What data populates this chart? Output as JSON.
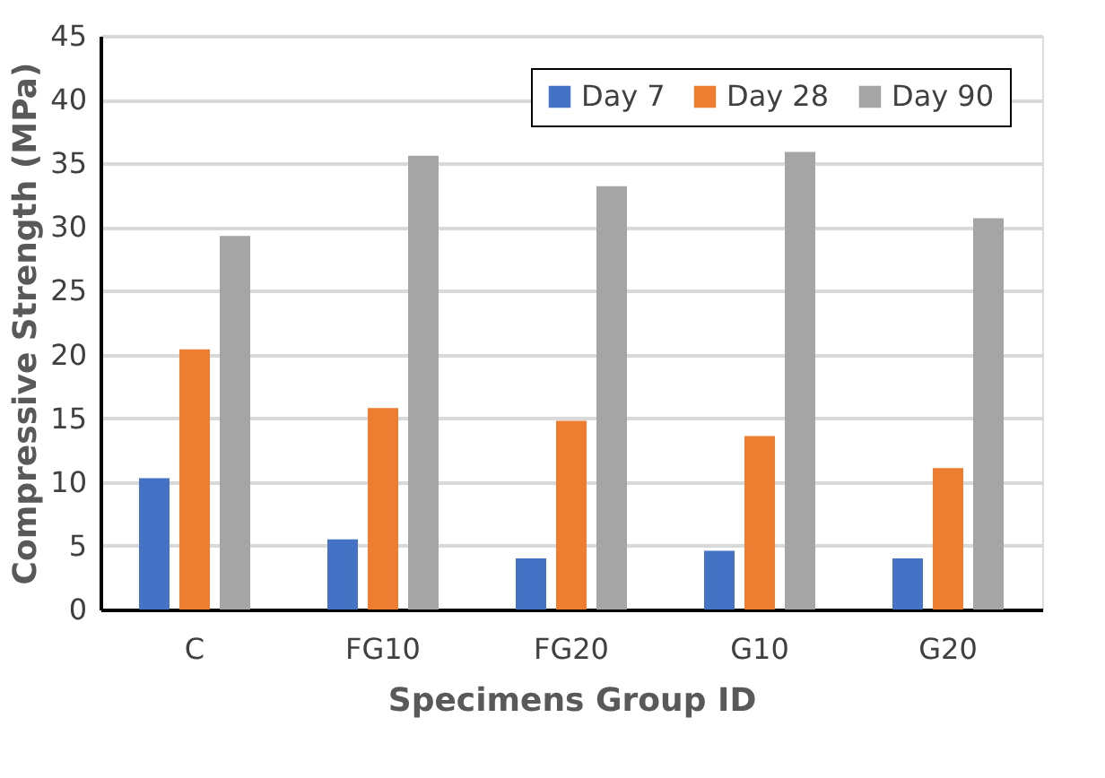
{
  "chart_data": {
    "type": "bar",
    "xlabel": "Specimens Group ID",
    "ylabel": "Compressive Strength (MPa)",
    "categories": [
      "C",
      "FG10",
      "FG20",
      "G10",
      "G20"
    ],
    "series": [
      {
        "name": "Day 7",
        "color": "#4472c4",
        "values": [
          10.3,
          5.5,
          4.0,
          4.6,
          4.0
        ]
      },
      {
        "name": "Day 28",
        "color": "#ed7d31",
        "values": [
          20.4,
          15.8,
          14.8,
          13.6,
          11.1
        ]
      },
      {
        "name": "Day 90",
        "color": "#a5a5a5",
        "values": [
          29.3,
          35.6,
          33.2,
          35.9,
          30.7
        ]
      }
    ],
    "ylim": [
      0,
      45
    ],
    "yticks": [
      0,
      5,
      10,
      15,
      20,
      25,
      30,
      35,
      40,
      45
    ],
    "grid": "y",
    "legend": "top right"
  }
}
